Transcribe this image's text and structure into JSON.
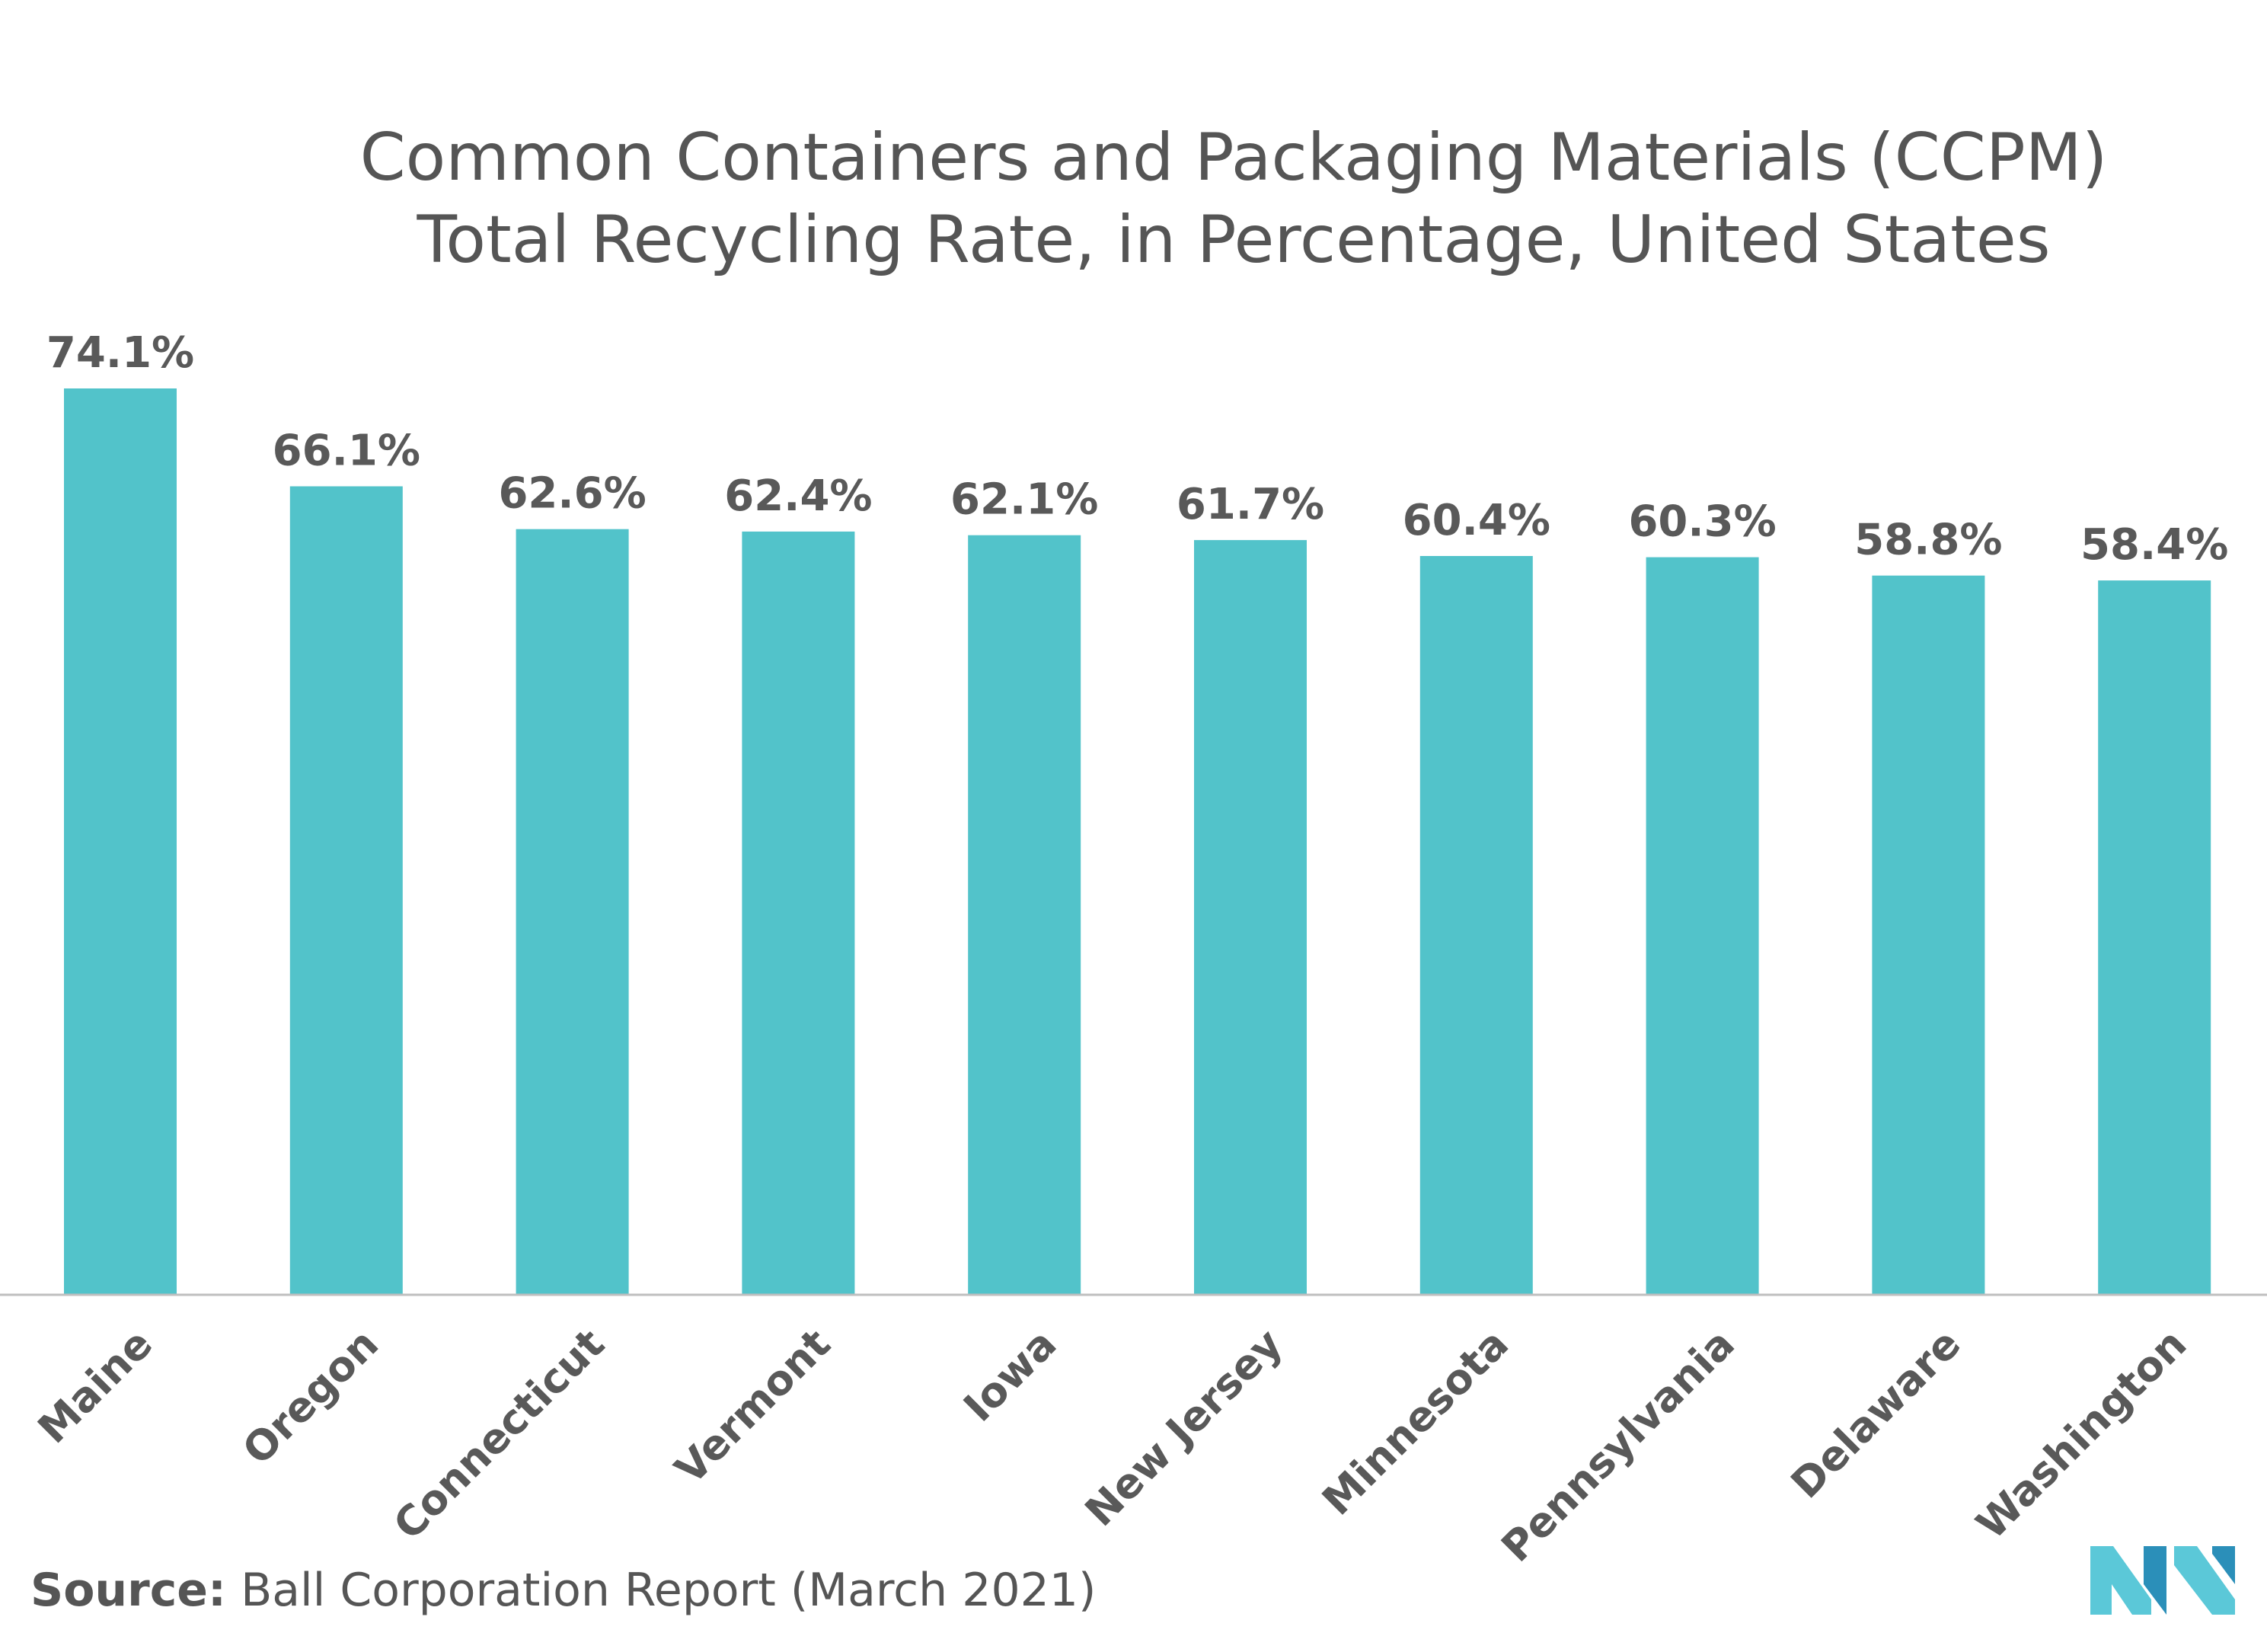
{
  "chart_data": {
    "type": "bar",
    "title": "Common Containers and Packaging Materials (CCPM) Total Recycling Rate, in Percentage, United States",
    "title_lines": [
      "Common Containers and Packaging Materials (CCPM)",
      "Total Recycling Rate, in Percentage, United States"
    ],
    "categories": [
      "Maine",
      "Oregon",
      "Connecticut",
      "Vermont",
      "Iowa",
      "New Jersey",
      "Minnesota",
      "Pennsylvania",
      "Delaware",
      "Washington"
    ],
    "values": [
      74.1,
      66.1,
      62.6,
      62.4,
      62.1,
      61.7,
      60.4,
      60.3,
      58.8,
      58.4
    ],
    "value_labels": [
      "74.1%",
      "66.1%",
      "62.6%",
      "62.4%",
      "62.1%",
      "61.7%",
      "60.4%",
      "60.3%",
      "58.8%",
      "58.4%"
    ],
    "ylim": [
      0,
      74.1
    ],
    "xlabel": "",
    "ylabel": "",
    "grid": false,
    "legend": "none",
    "bar_color": "#52C3CA",
    "baseline_color": "#BFBFBF"
  },
  "source": {
    "label": "Source:",
    "text": " Ball Corporation Report (March 2021)"
  },
  "logo": {
    "name": "company-logo-icon",
    "colors": [
      "#5BC8D8",
      "#2B8FB9"
    ]
  }
}
